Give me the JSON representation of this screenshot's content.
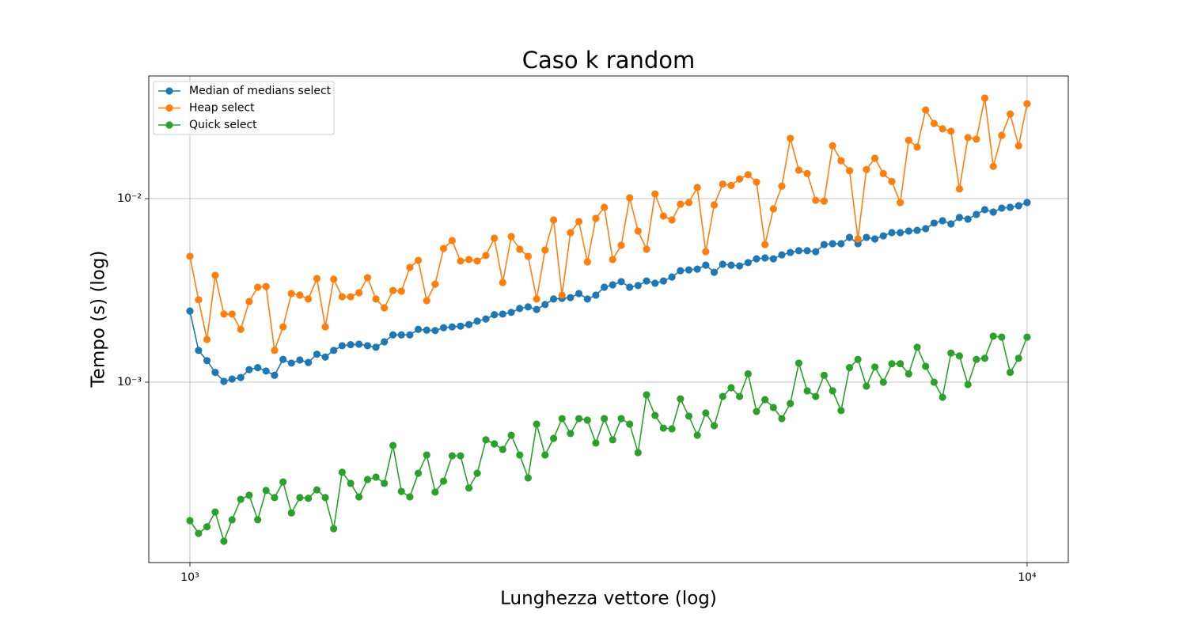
{
  "chart_data": {
    "type": "line",
    "title": "Caso k random",
    "xlabel": "Lunghezza vettore (log)",
    "ylabel": "Tempo (s) (log)",
    "xscale": "log",
    "yscale": "log",
    "grid": true,
    "legend": "upper left",
    "xlim": [
      893,
      11200
    ],
    "ylim": [
      0.000104,
      0.0466
    ],
    "xticks": [
      {
        "value": 1000,
        "label": "10³"
      },
      {
        "value": 10000,
        "label": "10⁴"
      }
    ],
    "yticks": [
      {
        "value": 0.001,
        "label": "10⁻³"
      },
      {
        "value": 0.01,
        "label": "10⁻²"
      }
    ],
    "x": [
      1000,
      1024,
      1048,
      1072,
      1098,
      1123,
      1150,
      1177,
      1205,
      1233,
      1262,
      1292,
      1322,
      1353,
      1385,
      1418,
      1451,
      1485,
      1520,
      1556,
      1592,
      1630,
      1668,
      1707,
      1748,
      1789,
      1831,
      1874,
      1918,
      1963,
      2009,
      2057,
      2105,
      2154,
      2204,
      2257,
      2310,
      2364,
      2420,
      2477,
      2535,
      2595,
      2656,
      2719,
      2783,
      2848,
      2915,
      2984,
      3054,
      3126,
      3199,
      3275,
      3352,
      3430,
      3511,
      3594,
      3678,
      3765,
      3854,
      3944,
      4037,
      4132,
      4229,
      4329,
      4431,
      4535,
      4642,
      4751,
      4863,
      4977,
      5094,
      5214,
      5337,
      5462,
      5591,
      5722,
      5857,
      5995,
      6136,
      6280,
      6428,
      6579,
      6734,
      6893,
      7055,
      7221,
      7391,
      7565,
      7743,
      7925,
      8111,
      8302,
      8498,
      8698,
      8902,
      9112,
      9326,
      9546,
      9770,
      10000
    ],
    "series": [
      {
        "name": "Median of medians select",
        "color": "#1f77b4",
        "values": [
          0.00244,
          0.00149,
          0.00131,
          0.00113,
          0.00101,
          0.00104,
          0.00106,
          0.00117,
          0.0012,
          0.00115,
          0.00109,
          0.00133,
          0.00127,
          0.00132,
          0.00128,
          0.00142,
          0.00137,
          0.00149,
          0.00158,
          0.0016,
          0.00161,
          0.00158,
          0.00155,
          0.00166,
          0.00181,
          0.00181,
          0.00181,
          0.00194,
          0.00192,
          0.00191,
          0.00198,
          0.002,
          0.00202,
          0.00206,
          0.00215,
          0.00221,
          0.00233,
          0.00235,
          0.0024,
          0.00252,
          0.00257,
          0.00249,
          0.00265,
          0.00284,
          0.00286,
          0.00289,
          0.00304,
          0.00284,
          0.00298,
          0.00329,
          0.00339,
          0.00353,
          0.00329,
          0.00336,
          0.00356,
          0.00346,
          0.00356,
          0.00374,
          0.00405,
          0.00409,
          0.00413,
          0.00434,
          0.00397,
          0.00439,
          0.00434,
          0.0043,
          0.00448,
          0.0047,
          0.00475,
          0.0047,
          0.00494,
          0.00509,
          0.0052,
          0.0052,
          0.00514,
          0.00562,
          0.00568,
          0.00568,
          0.00615,
          0.00568,
          0.00615,
          0.00603,
          0.00627,
          0.00653,
          0.00653,
          0.00666,
          0.00672,
          0.00686,
          0.00736,
          0.00758,
          0.00728,
          0.00789,
          0.00773,
          0.0082,
          0.00871,
          0.00845,
          0.00888,
          0.00897,
          0.00915,
          0.00952
        ]
      },
      {
        "name": "Heap select",
        "color": "#ff7f0e",
        "values": [
          0.00485,
          0.00281,
          0.00171,
          0.00382,
          0.00235,
          0.00235,
          0.00194,
          0.00275,
          0.00329,
          0.00332,
          0.00149,
          0.002,
          0.00304,
          0.00298,
          0.00284,
          0.00367,
          0.002,
          0.00364,
          0.00292,
          0.00292,
          0.00307,
          0.00371,
          0.00284,
          0.00254,
          0.00316,
          0.00313,
          0.00422,
          0.00461,
          0.00278,
          0.00342,
          0.00535,
          0.00591,
          0.00457,
          0.00466,
          0.00457,
          0.0049,
          0.00609,
          0.00349,
          0.00621,
          0.0053,
          0.00485,
          0.00284,
          0.00525,
          0.00765,
          0.00298,
          0.00653,
          0.0075,
          0.00452,
          0.00781,
          0.00897,
          0.00466,
          0.00557,
          0.0101,
          0.00666,
          0.0053,
          0.0106,
          0.00804,
          0.00765,
          0.00933,
          0.00952,
          0.0115,
          0.00514,
          0.00924,
          0.012,
          0.0118,
          0.0128,
          0.0135,
          0.0123,
          0.00562,
          0.00879,
          0.0117,
          0.0213,
          0.0143,
          0.0137,
          0.0098,
          0.0097,
          0.0194,
          0.0161,
          0.0142,
          0.00603,
          0.0144,
          0.0166,
          0.0137,
          0.0124,
          0.00952,
          0.0208,
          0.0191,
          0.0304,
          0.0257,
          0.024,
          0.0233,
          0.0113,
          0.0215,
          0.0211,
          0.0353,
          0.015,
          0.0221,
          0.0289,
          0.0194,
          0.0329
        ]
      },
      {
        "name": "Quick select",
        "color": "#2ca02c",
        "values": [
          0.000176,
          0.00015,
          0.000163,
          0.000196,
          0.000136,
          0.000178,
          0.00023,
          0.000242,
          0.000178,
          0.000257,
          0.000235,
          0.000286,
          0.000194,
          0.000235,
          0.000233,
          0.000259,
          0.000235,
          0.000159,
          0.000323,
          0.000281,
          0.000237,
          0.000295,
          0.000304,
          0.000281,
          0.000452,
          0.000254,
          0.000237,
          0.000319,
          0.000401,
          0.000252,
          0.000289,
          0.000397,
          0.000397,
          0.000265,
          0.000319,
          0.000485,
          0.000461,
          0.00043,
          0.000514,
          0.000401,
          0.000301,
          0.000591,
          0.000401,
          0.000494,
          0.000633,
          0.000525,
          0.000633,
          0.000621,
          0.000466,
          0.000633,
          0.000485,
          0.000633,
          0.000591,
          0.000413,
          0.000853,
          0.000659,
          0.000562,
          0.000557,
          0.000811,
          0.000653,
          0.000514,
          0.000679,
          0.000579,
          0.000836,
          0.000933,
          0.000836,
          0.00111,
          0.000693,
          0.000803,
          0.000728,
          0.000633,
          0.000765,
          0.00127,
          0.000897,
          0.000836,
          0.00109,
          0.000897,
          0.0007,
          0.0012,
          0.00133,
          0.000951,
          0.00121,
          0.001,
          0.00126,
          0.00126,
          0.00111,
          0.00155,
          0.00122,
          0.001,
          0.000828,
          0.00144,
          0.00139,
          0.000971,
          0.00133,
          0.00135,
          0.00178,
          0.00176,
          0.00113,
          0.00135,
          0.00176
        ]
      }
    ]
  }
}
